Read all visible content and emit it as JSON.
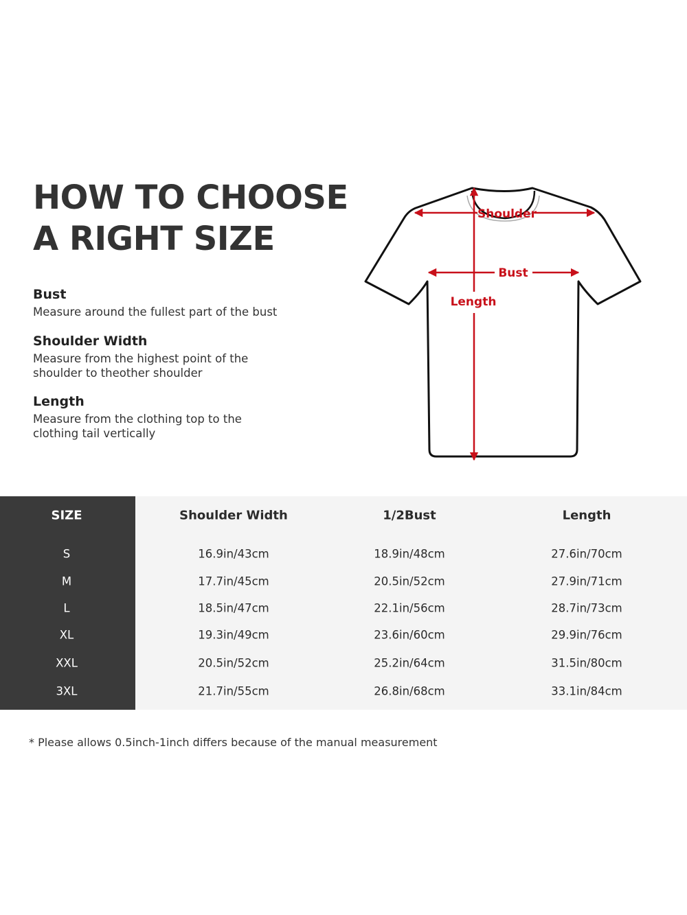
{
  "title": {
    "line1": "HOW TO CHOOSE",
    "line2": "A RIGHT SIZE"
  },
  "guide": [
    {
      "heading": "Bust",
      "text": "Measure around the fullest part of the bust"
    },
    {
      "heading": "Shoulder Width",
      "text": "Measure from the highest point of the shoulder to theother shoulder"
    },
    {
      "heading": "Length",
      "text": "Measure from the clothing top to the clothing tail vertically"
    }
  ],
  "diagram": {
    "shoulder": "Shoulder",
    "bust": "Bust",
    "length": "Length",
    "accent": "#c8101a"
  },
  "table": {
    "headers": [
      "SIZE",
      "Shoulder Width",
      "1/2Bust",
      "Length"
    ],
    "rows": [
      [
        "S",
        "16.9in/43cm",
        "18.9in/48cm",
        "27.6in/70cm"
      ],
      [
        "M",
        "17.7in/45cm",
        "20.5in/52cm",
        "27.9in/71cm"
      ],
      [
        "L",
        "18.5in/47cm",
        "22.1in/56cm",
        "28.7in/73cm"
      ],
      [
        "XL",
        "19.3in/49cm",
        "23.6in/60cm",
        "29.9in/76cm"
      ],
      [
        "XXL",
        "20.5in/52cm",
        "25.2in/64cm",
        "31.5in/80cm"
      ],
      [
        "3XL",
        "21.7in/55cm",
        "26.8in/68cm",
        "33.1in/84cm"
      ]
    ]
  },
  "note": "* Please allows 0.5inch-1inch differs because of the  manual measurement"
}
